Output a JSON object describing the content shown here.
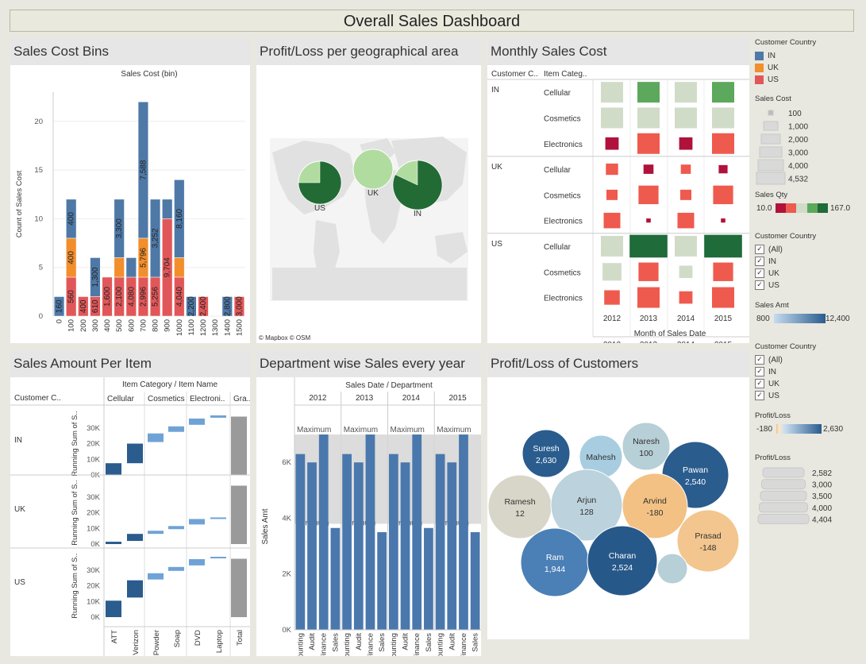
{
  "title": "Overall Sales Dashboard",
  "colors": {
    "IN": "#4e79a7",
    "UK": "#f28e2b",
    "US": "#e15759"
  },
  "panels": {
    "bins": "Sales Cost Bins",
    "geo": "Profit/Loss per geographical area",
    "monthly": "Monthly Sales Cost",
    "amount": "Sales Amount Per Item",
    "dept": "Department wise Sales every year",
    "customers": "Profit/Loss of Customers"
  },
  "chart_data": [
    {
      "id": "bins",
      "type": "bar",
      "title": "Sales Cost (bin)",
      "ylabel": "Count of Sales Cost",
      "ylim": [
        0,
        23
      ],
      "yticks": [
        0,
        5,
        10,
        15,
        20
      ],
      "categories": [
        "0",
        "100",
        "200",
        "300",
        "400",
        "500",
        "600",
        "700",
        "800",
        "900",
        "1000",
        "1100",
        "1200",
        "1300",
        "1400",
        "1500"
      ],
      "series": [
        {
          "name": "US",
          "values": [
            0,
            4,
            2,
            2,
            4,
            4,
            4,
            4,
            4,
            10,
            4,
            0,
            2,
            0,
            0,
            2
          ],
          "labels": [
            "",
            "560",
            "400",
            "610",
            "1,600",
            "2,100",
            "4,080",
            "2,996",
            "5,256",
            "9,704",
            "4,040",
            "",
            "2,400",
            "",
            "",
            "3,000"
          ]
        },
        {
          "name": "UK",
          "values": [
            0,
            4,
            0,
            0,
            0,
            2,
            0,
            4,
            0,
            0,
            2,
            0,
            0,
            0,
            0,
            0
          ],
          "labels": [
            "",
            "400",
            "",
            "",
            "",
            "",
            "",
            "5,796",
            "",
            "",
            "",
            "",
            "",
            "",
            "",
            ""
          ]
        },
        {
          "name": "IN",
          "values": [
            2,
            4,
            0,
            4,
            0,
            6,
            2,
            14,
            8,
            2,
            8,
            2,
            0,
            0,
            2,
            0
          ],
          "labels": [
            "160",
            "400",
            "",
            "1,300",
            "",
            "3,300",
            "",
            "7,588",
            "3,252",
            "",
            "8,160",
            "2,200",
            "",
            "",
            "2,800",
            ""
          ]
        }
      ]
    },
    {
      "id": "geo",
      "type": "pie",
      "attribution": "© Mapbox  © OSM",
      "pies": [
        {
          "name": "US",
          "share_dark": 0.75
        },
        {
          "name": "UK",
          "share_dark": 0.0
        },
        {
          "name": "IN",
          "share_dark": 0.82
        }
      ]
    },
    {
      "id": "monthly",
      "type": "heatmap",
      "row_headers": [
        "Customer C..",
        "Item Categ.."
      ],
      "countries": [
        "IN",
        "UK",
        "US"
      ],
      "categories": [
        "Cellular",
        "Cosmetics",
        "Electronics"
      ],
      "years": [
        "2012",
        "2013",
        "2014",
        "2015"
      ],
      "xlabel": "Month of Sales Date",
      "cells": [
        [
          [
            1.0,
            "#d0dcc8"
          ],
          [
            1.0,
            "#5ca85c"
          ],
          [
            1.0,
            "#d0dcc8"
          ],
          [
            1.0,
            "#5ca85c"
          ]
        ],
        [
          [
            1.0,
            "#d0dcc8"
          ],
          [
            1.0,
            "#d0dcc8"
          ],
          [
            1.0,
            "#d0dcc8"
          ],
          [
            1.0,
            "#d0dcc8"
          ]
        ],
        [
          [
            0.6,
            "#b0123b"
          ],
          [
            1.0,
            "#ef5a4e"
          ],
          [
            0.6,
            "#b0123b"
          ],
          [
            1.0,
            "#ef5a4e"
          ]
        ],
        [
          [
            0.55,
            "#ef5a4e"
          ],
          [
            0.45,
            "#b0123b"
          ],
          [
            0.45,
            "#ef5a4e"
          ],
          [
            0.4,
            "#b0123b"
          ]
        ],
        [
          [
            0.5,
            "#ef5a4e"
          ],
          [
            0.9,
            "#ef5a4e"
          ],
          [
            0.5,
            "#ef5a4e"
          ],
          [
            0.9,
            "#ef5a4e"
          ]
        ],
        [
          [
            0.75,
            "#ef5a4e"
          ],
          [
            0.2,
            "#b0123b"
          ],
          [
            0.75,
            "#ef5a4e"
          ],
          [
            0.2,
            "#b0123b"
          ]
        ],
        [
          [
            1.0,
            "#d0dcc8"
          ],
          [
            1.7,
            "#1f6b3a"
          ],
          [
            1.0,
            "#d0dcc8"
          ],
          [
            1.7,
            "#1f6b3a"
          ]
        ],
        [
          [
            0.85,
            "#d0dcc8"
          ],
          [
            0.9,
            "#ef5a4e"
          ],
          [
            0.6,
            "#d0dcc8"
          ],
          [
            0.9,
            "#ef5a4e"
          ]
        ],
        [
          [
            0.7,
            "#ef5a4e"
          ],
          [
            1.0,
            "#ef5a4e"
          ],
          [
            0.6,
            "#ef5a4e"
          ],
          [
            1.0,
            "#ef5a4e"
          ]
        ]
      ]
    },
    {
      "id": "amount",
      "type": "bar",
      "row_header": "Customer C..",
      "top_header": "Item Category / Item Name",
      "groups": [
        "Cellular",
        "Cosmetics",
        "Electroni..",
        "Gra.."
      ],
      "items": [
        "ATT",
        "Verizon",
        "Powder",
        "Soap",
        "DVD",
        "Laptop",
        "Total"
      ],
      "ylabel": "Running Sum of S..",
      "yticks": [
        "0K",
        "10K",
        "20K",
        "30K"
      ],
      "yticks_values": [
        0,
        10000,
        20000,
        30000
      ],
      "countries": [
        "IN",
        "UK",
        "US"
      ],
      "waterfall": {
        "IN": [
          [
            0,
            7500
          ],
          [
            7500,
            20000
          ],
          [
            21000,
            26500
          ],
          [
            27500,
            31000
          ],
          [
            32000,
            36000
          ],
          [
            36500,
            38000
          ]
        ],
        "UK": [
          [
            0,
            1500
          ],
          [
            2000,
            6500
          ],
          [
            6500,
            8500
          ],
          [
            9500,
            11500
          ],
          [
            12500,
            16000
          ],
          [
            16500,
            17000
          ]
        ],
        "US": [
          [
            0,
            10500
          ],
          [
            12500,
            23500
          ],
          [
            24000,
            28000
          ],
          [
            29500,
            32000
          ],
          [
            33000,
            37000
          ],
          [
            37500,
            38500
          ]
        ]
      }
    },
    {
      "id": "dept",
      "type": "bar",
      "top_header": "Sales Date / Department",
      "years": [
        "2012",
        "2013",
        "2014",
        "2015"
      ],
      "departments": [
        "Accounting",
        "Audit",
        "Finance",
        "Sales"
      ],
      "ylabel": "Sales Amt",
      "yticks": [
        "0K",
        "2K",
        "4K",
        "6K"
      ],
      "yticks_values": [
        0,
        2000,
        4000,
        6000
      ],
      "ylim": [
        0,
        7400
      ],
      "band": {
        "min": 3800,
        "max": 7000,
        "min_label": "Minimum",
        "max_label": "Maximum"
      },
      "values": [
        6300,
        6000,
        7000,
        3650,
        6300,
        6000,
        7000,
        3500,
        6300,
        6000,
        7000,
        3650,
        6300,
        6000,
        7000,
        3500
      ]
    },
    {
      "id": "customers",
      "type": "bubble",
      "bubbles": [
        {
          "name": "Suresh",
          "value": "2,630",
          "color": "#2a5c8e"
        },
        {
          "name": "Mahesh",
          "value": "",
          "color": "#a8cde0"
        },
        {
          "name": "Naresh",
          "value": "100",
          "color": "#b7cfd6"
        },
        {
          "name": "Pawan",
          "value": "2,540",
          "color": "#2a5c8e"
        },
        {
          "name": "Ramesh",
          "value": "12",
          "color": "#d7d6c9"
        },
        {
          "name": "Arjun",
          "value": "128",
          "color": "#bcd2dc"
        },
        {
          "name": "Arvind",
          "value": "-180",
          "color": "#f3c183"
        },
        {
          "name": "Prasad",
          "value": "-148",
          "color": "#f2c68e"
        },
        {
          "name": "Ram",
          "value": "1,944",
          "color": "#4b80b6"
        },
        {
          "name": "Charan",
          "value": "2,524",
          "color": "#27588a"
        },
        {
          "name": "",
          "value": "",
          "color": "#b7cfd6"
        }
      ]
    }
  ],
  "legends": {
    "country": {
      "title": "Customer Country",
      "items": [
        "IN",
        "UK",
        "US"
      ]
    },
    "sales_cost": {
      "title": "Sales Cost",
      "items": [
        "100",
        "1,000",
        "2,000",
        "3,000",
        "4,000",
        "4,532"
      ]
    },
    "sales_qty": {
      "title": "Sales Qty",
      "min": "10.0",
      "max": "167.0"
    },
    "filter1": {
      "title": "Customer Country",
      "items": [
        "(All)",
        "IN",
        "UK",
        "US"
      ]
    },
    "sales_amt": {
      "title": "Sales Amt",
      "min": "800",
      "max": "12,400"
    },
    "filter2": {
      "title": "Customer Country",
      "items": [
        "(All)",
        "IN",
        "UK",
        "US"
      ]
    },
    "profit_color": {
      "title": "Profit/Loss",
      "min": "-180",
      "max": "2,630"
    },
    "profit_size": {
      "title": "Profit/Loss",
      "items": [
        "2,582",
        "3,000",
        "3,500",
        "4,000",
        "4,404"
      ]
    }
  }
}
